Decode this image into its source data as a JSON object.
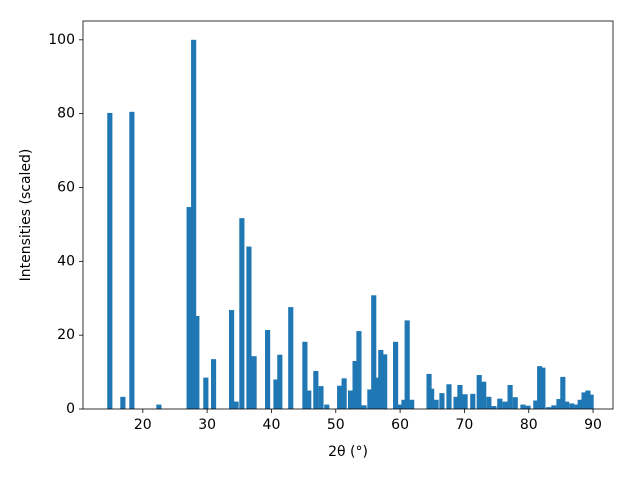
{
  "chart_data": {
    "type": "bar",
    "xlabel": "2θ (°)",
    "ylabel": "Intensities (scaled)",
    "color": "#1f77b4",
    "x": [
      14.87,
      16.9,
      18.3,
      22.5,
      27.2,
      27.9,
      28.4,
      29.8,
      31.0,
      33.8,
      34.5,
      35.4,
      36.5,
      37.3,
      39.4,
      40.7,
      41.3,
      43.0,
      45.2,
      45.8,
      46.9,
      47.7,
      48.6,
      50.6,
      51.3,
      52.3,
      53.0,
      53.6,
      54.4,
      55.3,
      55.9,
      56.5,
      57.0,
      57.6,
      59.3,
      59.9,
      60.6,
      61.1,
      61.8,
      64.5,
      64.9,
      65.6,
      66.5,
      67.6,
      68.7,
      69.3,
      70.1,
      71.3,
      72.3,
      73.0,
      73.8,
      74.6,
      75.5,
      76.3,
      77.1,
      77.9,
      79.1,
      79.9,
      81.1,
      81.7,
      82.2,
      83.1,
      83.9,
      84.7,
      85.3,
      85.9,
      86.7,
      87.5,
      88.0,
      88.6,
      89.2,
      89.7
    ],
    "values": [
      80.2,
      3.3,
      80.5,
      1.2,
      54.7,
      100,
      25.2,
      8.5,
      13.5,
      26.8,
      2,
      51.7,
      44,
      14.3,
      21.4,
      8,
      14.7,
      27.6,
      18.2,
      5,
      10.3,
      6.2,
      1.2,
      6.3,
      8.3,
      5,
      13,
      21.1,
      1,
      5.3,
      30.8,
      8.5,
      16,
      14.8,
      18.2,
      1.2,
      2.5,
      24,
      2.5,
      9.5,
      5.5,
      2.5,
      4.3,
      6.7,
      3.3,
      6.5,
      4,
      4.1,
      9.2,
      7.4,
      3.3,
      0.8,
      2.8,
      2,
      6.5,
      3.2,
      1.2,
      0.9,
      2.3,
      11.6,
      11.2,
      0.5,
      1,
      2.7,
      8.7,
      2,
      1.5,
      1.2,
      2.5,
      4.5,
      5,
      3.9
    ],
    "xlim": [
      10.7,
      93.1
    ],
    "ylim": [
      0,
      105.1
    ],
    "xticks": [
      20,
      30,
      40,
      50,
      60,
      70,
      80,
      90
    ],
    "yticks": [
      0,
      20,
      40,
      60,
      80,
      100
    ]
  }
}
